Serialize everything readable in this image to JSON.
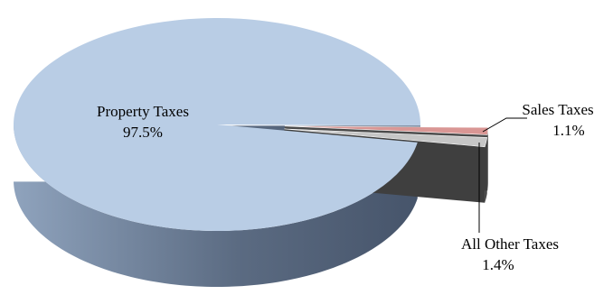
{
  "chart_data": {
    "type": "pie",
    "style": "3d",
    "title": "",
    "slices": [
      {
        "label": "Property Taxes",
        "value": 97.5,
        "value_label": "97.5%",
        "color": "#b9cde5"
      },
      {
        "label": "Sales Taxes",
        "value": 1.1,
        "value_label": "1.1%",
        "color": "#d99694"
      },
      {
        "label": "All Other Taxes",
        "value": 1.4,
        "value_label": "1.4%",
        "color": "#c6c6c6"
      }
    ],
    "legend": "none",
    "exploded_slices": [
      "Sales Taxes",
      "All Other Taxes"
    ]
  }
}
